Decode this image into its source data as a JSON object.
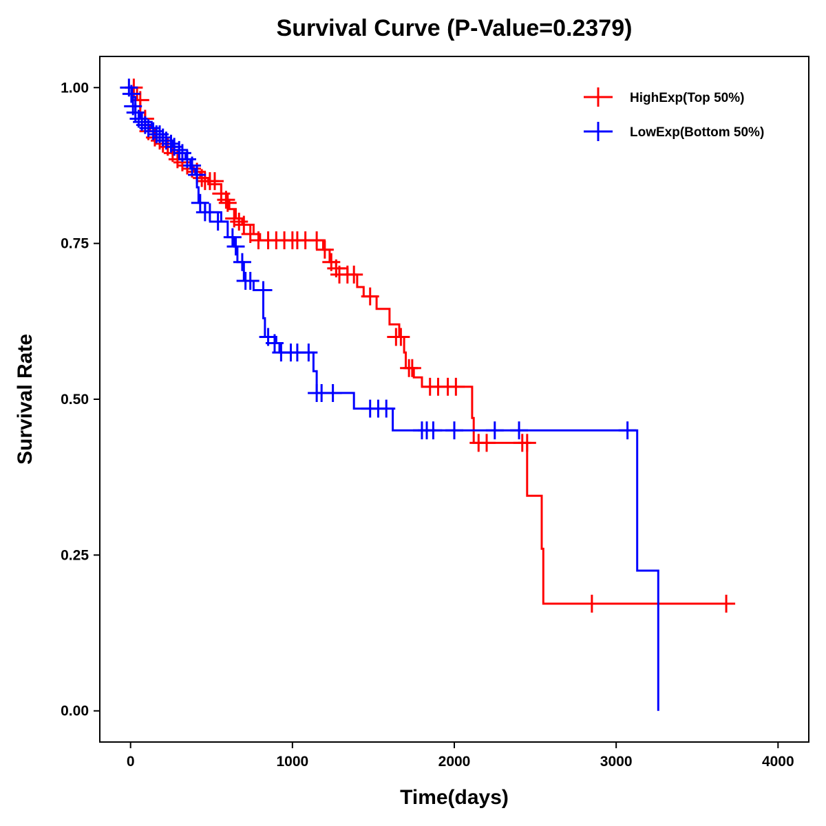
{
  "chart_data": {
    "type": "line",
    "subtype": "kaplan-meier",
    "title": "Survival Curve (P-Value=0.2379)",
    "xlabel": "Time(days)",
    "ylabel": "Survival Rate",
    "xlim": [
      -190,
      4190
    ],
    "ylim": [
      -0.05,
      1.05
    ],
    "xticks": [
      0,
      1000,
      2000,
      3000,
      4000
    ],
    "xtick_labels": [
      "0",
      "1000",
      "2000",
      "3000",
      "4000"
    ],
    "yticks": [
      0,
      0.25,
      0.5,
      0.75,
      1.0
    ],
    "ytick_labels": [
      "0.00",
      "0.25",
      "0.50",
      "0.75",
      "1.00"
    ],
    "legend_position": "top-right",
    "series": [
      {
        "name": "HighExp(Top 50%)",
        "color": "#ff0000",
        "steps": [
          [
            0,
            1.0
          ],
          [
            40,
            0.98
          ],
          [
            60,
            0.96
          ],
          [
            90,
            0.94
          ],
          [
            120,
            0.93
          ],
          [
            150,
            0.92
          ],
          [
            180,
            0.915
          ],
          [
            220,
            0.905
          ],
          [
            260,
            0.895
          ],
          [
            300,
            0.885
          ],
          [
            350,
            0.875
          ],
          [
            390,
            0.865
          ],
          [
            430,
            0.855
          ],
          [
            480,
            0.845
          ],
          [
            560,
            0.83
          ],
          [
            590,
            0.82
          ],
          [
            610,
            0.805
          ],
          [
            650,
            0.79
          ],
          [
            690,
            0.78
          ],
          [
            760,
            0.765
          ],
          [
            800,
            0.755
          ],
          [
            1190,
            0.74
          ],
          [
            1230,
            0.72
          ],
          [
            1270,
            0.71
          ],
          [
            1340,
            0.7
          ],
          [
            1400,
            0.68
          ],
          [
            1440,
            0.665
          ],
          [
            1520,
            0.645
          ],
          [
            1600,
            0.62
          ],
          [
            1660,
            0.6
          ],
          [
            1690,
            0.575
          ],
          [
            1700,
            0.55
          ],
          [
            1750,
            0.535
          ],
          [
            1800,
            0.52
          ],
          [
            2110,
            0.47
          ],
          [
            2120,
            0.43
          ],
          [
            2450,
            0.345
          ],
          [
            2540,
            0.26
          ],
          [
            2550,
            0.172
          ],
          [
            3720,
            0.172
          ]
        ],
        "censor": [
          [
            20,
            1.0
          ],
          [
            60,
            0.98
          ],
          [
            90,
            0.95
          ],
          [
            110,
            0.93
          ],
          [
            150,
            0.92
          ],
          [
            180,
            0.915
          ],
          [
            200,
            0.91
          ],
          [
            230,
            0.905
          ],
          [
            260,
            0.895
          ],
          [
            290,
            0.885
          ],
          [
            320,
            0.88
          ],
          [
            350,
            0.875
          ],
          [
            380,
            0.87
          ],
          [
            410,
            0.865
          ],
          [
            440,
            0.855
          ],
          [
            460,
            0.85
          ],
          [
            490,
            0.85
          ],
          [
            520,
            0.85
          ],
          [
            560,
            0.83
          ],
          [
            590,
            0.82
          ],
          [
            600,
            0.815
          ],
          [
            640,
            0.79
          ],
          [
            670,
            0.785
          ],
          [
            700,
            0.78
          ],
          [
            740,
            0.765
          ],
          [
            790,
            0.755
          ],
          [
            850,
            0.755
          ],
          [
            900,
            0.755
          ],
          [
            950,
            0.755
          ],
          [
            1000,
            0.755
          ],
          [
            1030,
            0.755
          ],
          [
            1080,
            0.755
          ],
          [
            1150,
            0.755
          ],
          [
            1200,
            0.74
          ],
          [
            1240,
            0.72
          ],
          [
            1270,
            0.71
          ],
          [
            1290,
            0.7
          ],
          [
            1340,
            0.7
          ],
          [
            1380,
            0.7
          ],
          [
            1480,
            0.665
          ],
          [
            1640,
            0.6
          ],
          [
            1670,
            0.6
          ],
          [
            1720,
            0.55
          ],
          [
            1740,
            0.55
          ],
          [
            1850,
            0.52
          ],
          [
            1900,
            0.52
          ],
          [
            1960,
            0.52
          ],
          [
            2010,
            0.52
          ],
          [
            2150,
            0.43
          ],
          [
            2200,
            0.43
          ],
          [
            2420,
            0.43
          ],
          [
            2450,
            0.43
          ],
          [
            2850,
            0.172
          ],
          [
            3680,
            0.172
          ]
        ]
      },
      {
        "name": "LowExp(Bottom 50%)",
        "color": "#0000ff",
        "steps": [
          [
            0,
            1.0
          ],
          [
            10,
            0.985
          ],
          [
            30,
            0.96
          ],
          [
            60,
            0.95
          ],
          [
            90,
            0.945
          ],
          [
            130,
            0.935
          ],
          [
            180,
            0.925
          ],
          [
            220,
            0.915
          ],
          [
            260,
            0.905
          ],
          [
            300,
            0.895
          ],
          [
            340,
            0.885
          ],
          [
            370,
            0.87
          ],
          [
            400,
            0.86
          ],
          [
            410,
            0.84
          ],
          [
            420,
            0.815
          ],
          [
            460,
            0.8
          ],
          [
            560,
            0.785
          ],
          [
            600,
            0.76
          ],
          [
            640,
            0.745
          ],
          [
            660,
            0.72
          ],
          [
            700,
            0.69
          ],
          [
            760,
            0.675
          ],
          [
            820,
            0.63
          ],
          [
            830,
            0.6
          ],
          [
            900,
            0.59
          ],
          [
            920,
            0.575
          ],
          [
            1130,
            0.545
          ],
          [
            1150,
            0.51
          ],
          [
            1380,
            0.485
          ],
          [
            1620,
            0.45
          ],
          [
            3130,
            0.225
          ],
          [
            3260,
            0.0
          ]
        ],
        "censor": [
          [
            -10,
            1.0
          ],
          [
            5,
            0.99
          ],
          [
            15,
            0.97
          ],
          [
            30,
            0.96
          ],
          [
            50,
            0.95
          ],
          [
            70,
            0.945
          ],
          [
            90,
            0.94
          ],
          [
            110,
            0.935
          ],
          [
            140,
            0.93
          ],
          [
            160,
            0.925
          ],
          [
            180,
            0.925
          ],
          [
            200,
            0.92
          ],
          [
            220,
            0.915
          ],
          [
            250,
            0.91
          ],
          [
            270,
            0.905
          ],
          [
            300,
            0.9
          ],
          [
            320,
            0.895
          ],
          [
            350,
            0.885
          ],
          [
            380,
            0.875
          ],
          [
            410,
            0.86
          ],
          [
            430,
            0.815
          ],
          [
            460,
            0.8
          ],
          [
            490,
            0.8
          ],
          [
            540,
            0.785
          ],
          [
            630,
            0.76
          ],
          [
            650,
            0.745
          ],
          [
            690,
            0.72
          ],
          [
            710,
            0.69
          ],
          [
            740,
            0.69
          ],
          [
            820,
            0.675
          ],
          [
            850,
            0.6
          ],
          [
            890,
            0.59
          ],
          [
            930,
            0.575
          ],
          [
            990,
            0.575
          ],
          [
            1030,
            0.575
          ],
          [
            1100,
            0.575
          ],
          [
            1150,
            0.51
          ],
          [
            1180,
            0.51
          ],
          [
            1250,
            0.51
          ],
          [
            1480,
            0.485
          ],
          [
            1530,
            0.485
          ],
          [
            1580,
            0.485
          ],
          [
            1800,
            0.45
          ],
          [
            1830,
            0.45
          ],
          [
            1870,
            0.45
          ],
          [
            2000,
            0.45
          ],
          [
            2250,
            0.45
          ],
          [
            2400,
            0.45
          ],
          [
            3070,
            0.45
          ]
        ]
      }
    ]
  }
}
